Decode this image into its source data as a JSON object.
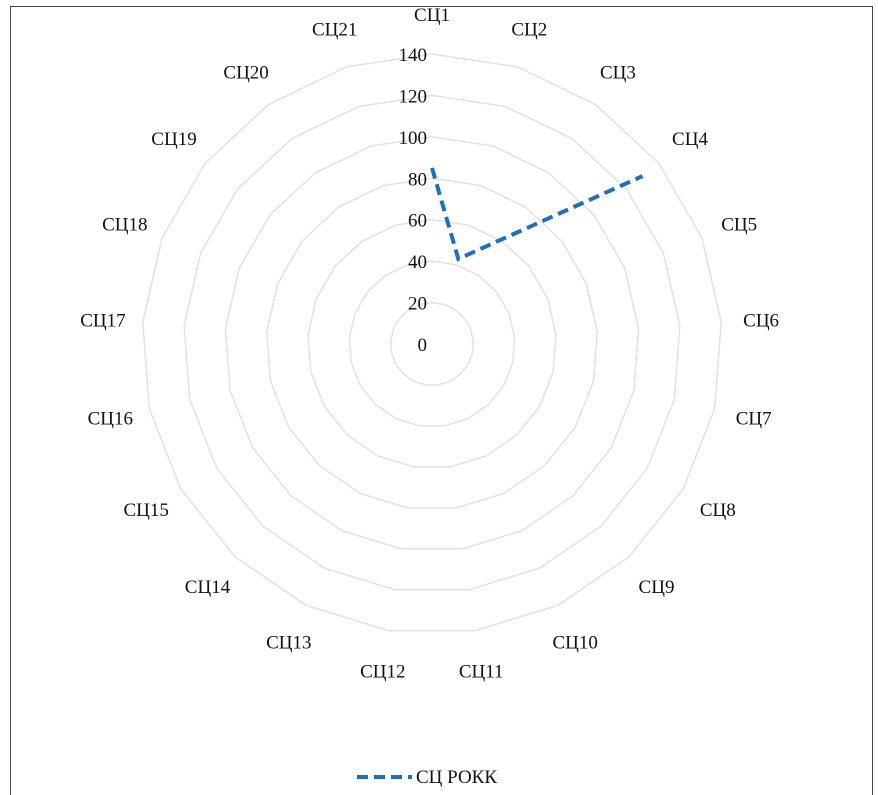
{
  "chart_data": {
    "type": "radar",
    "categories": [
      "СЦ1",
      "СЦ2",
      "СЦ3",
      "СЦ4",
      "СЦ5",
      "СЦ6",
      "СЦ7",
      "СЦ8",
      "СЦ9",
      "СЦ10",
      "СЦ11",
      "СЦ12",
      "СЦ13",
      "СЦ14",
      "СЦ15",
      "СЦ16",
      "СЦ17",
      "СЦ18",
      "СЦ19",
      "СЦ20",
      "СЦ21"
    ],
    "r_ticks": [
      0,
      20,
      40,
      60,
      80,
      100,
      120,
      140
    ],
    "rlim": [
      0,
      140
    ],
    "grid": true,
    "legend_position": "bottom",
    "series": [
      {
        "name": "СЦ РОКК",
        "color": "#1f6fbf",
        "line_style": "dashed",
        "points": [
          {
            "category": "СЦ1",
            "value": 85
          },
          {
            "category": "СЦ2",
            "value": 43
          },
          {
            "category": "СЦ3",
            "value": null
          },
          {
            "category": "СЦ4",
            "value": 130
          }
        ]
      }
    ]
  }
}
